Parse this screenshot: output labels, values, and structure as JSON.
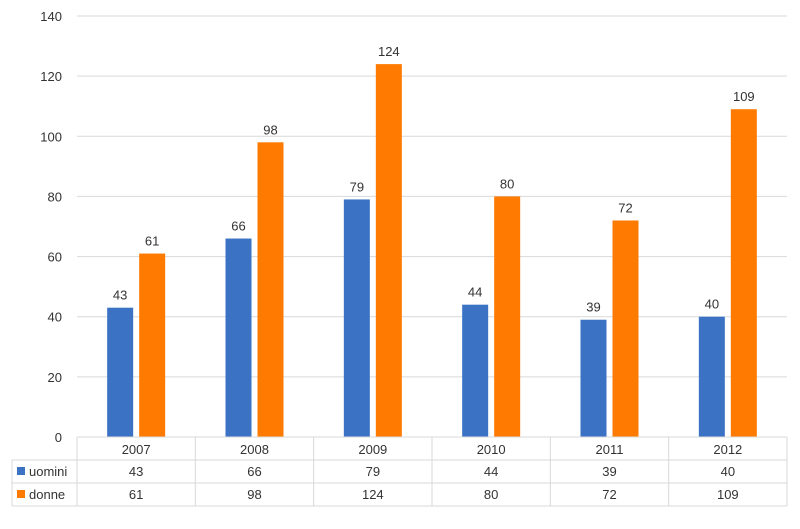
{
  "chart_data": {
    "type": "bar",
    "categories": [
      "2007",
      "2008",
      "2009",
      "2010",
      "2011",
      "2012"
    ],
    "series": [
      {
        "name": "uomini",
        "values": [
          43,
          66,
          79,
          44,
          39,
          40
        ],
        "color": "#3b72c4"
      },
      {
        "name": "donne",
        "values": [
          61,
          98,
          124,
          80,
          72,
          109
        ],
        "color": "#ff7a00"
      }
    ],
    "ylim": [
      0,
      140
    ],
    "yticks": [
      0,
      20,
      40,
      60,
      80,
      100,
      120,
      140
    ],
    "grid": true,
    "data_labels": true,
    "data_table": true,
    "title": "",
    "xlabel": "",
    "ylabel": ""
  }
}
